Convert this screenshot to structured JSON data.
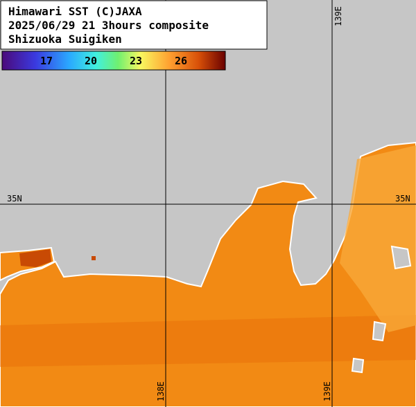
{
  "header": {
    "lines": [
      "Himawari SST (C)JAXA",
      "2025/06/29 21 3hours composite",
      "Shizuoka Suigiken"
    ]
  },
  "colorbar": {
    "labels": [
      17,
      20,
      23,
      26
    ]
  },
  "grid": {
    "lat_left": "35N",
    "lat_right": "35N",
    "lon_top": "139E",
    "lon_bottom_left": "138E",
    "lon_bottom_right": "139E"
  }
}
